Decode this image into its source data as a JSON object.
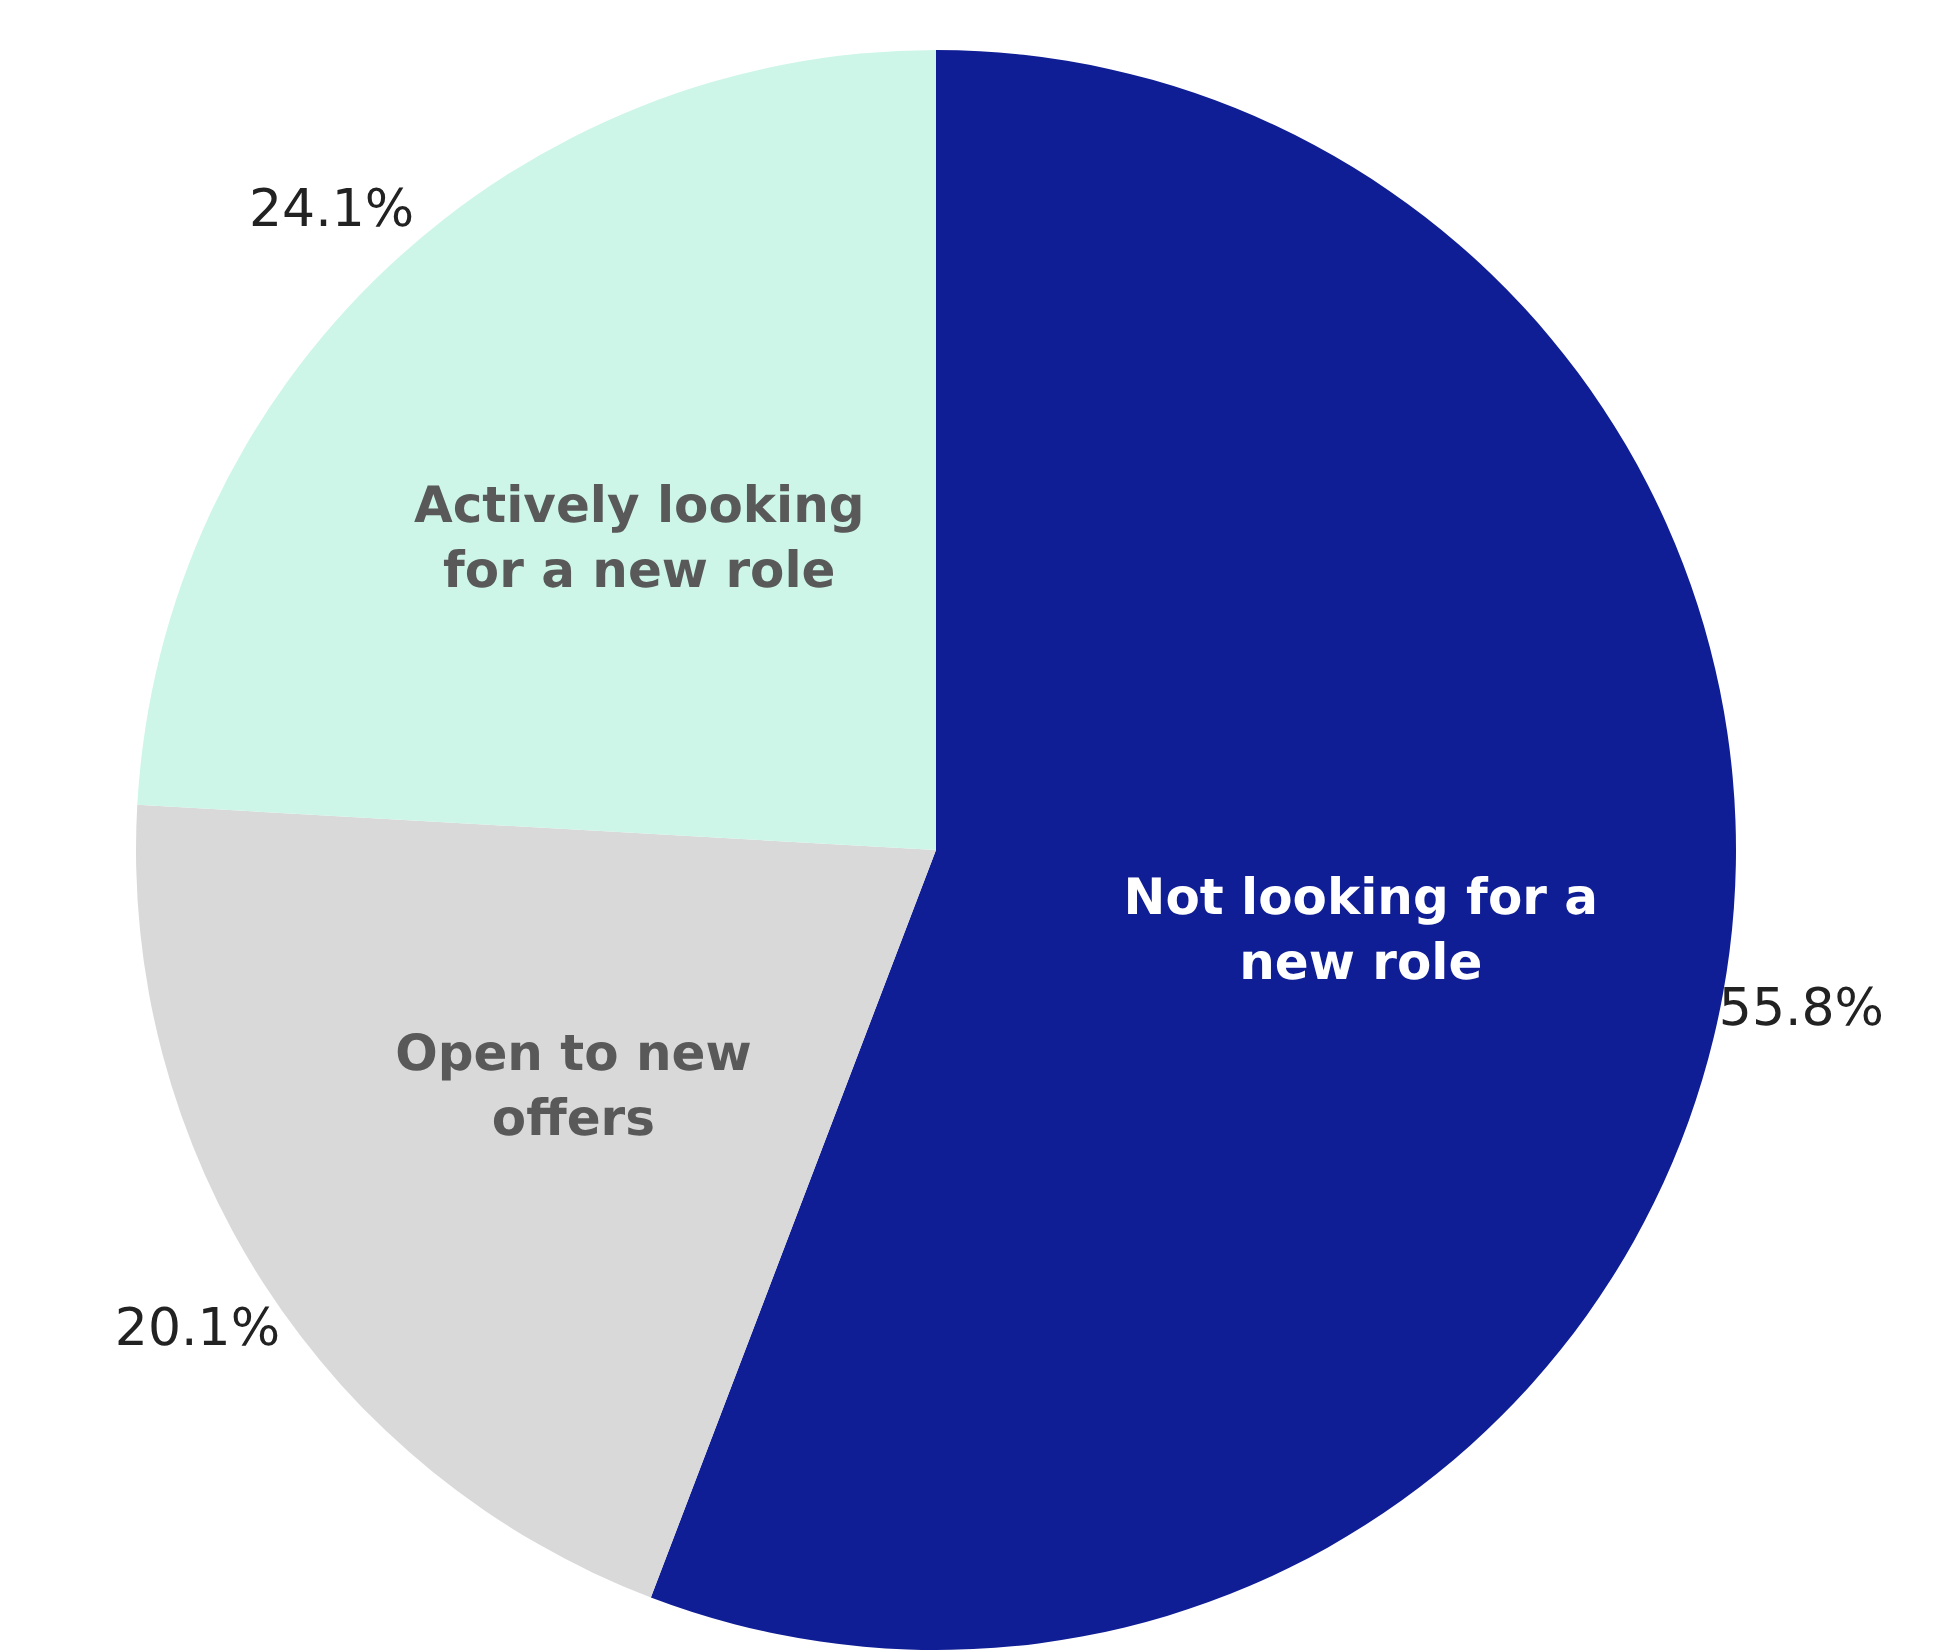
{
  "chart_data": {
    "type": "pie",
    "categories": [
      "Not looking for a new role",
      "Open to new offers",
      "Actively looking for a new role"
    ],
    "values": [
      55.8,
      20.1,
      24.1
    ],
    "colors": [
      "#101e96",
      "#d9d9d9",
      "#cdf6e8"
    ],
    "value_labels": [
      "55.8%",
      "20.1%",
      "24.1%"
    ],
    "legend": false
  }
}
